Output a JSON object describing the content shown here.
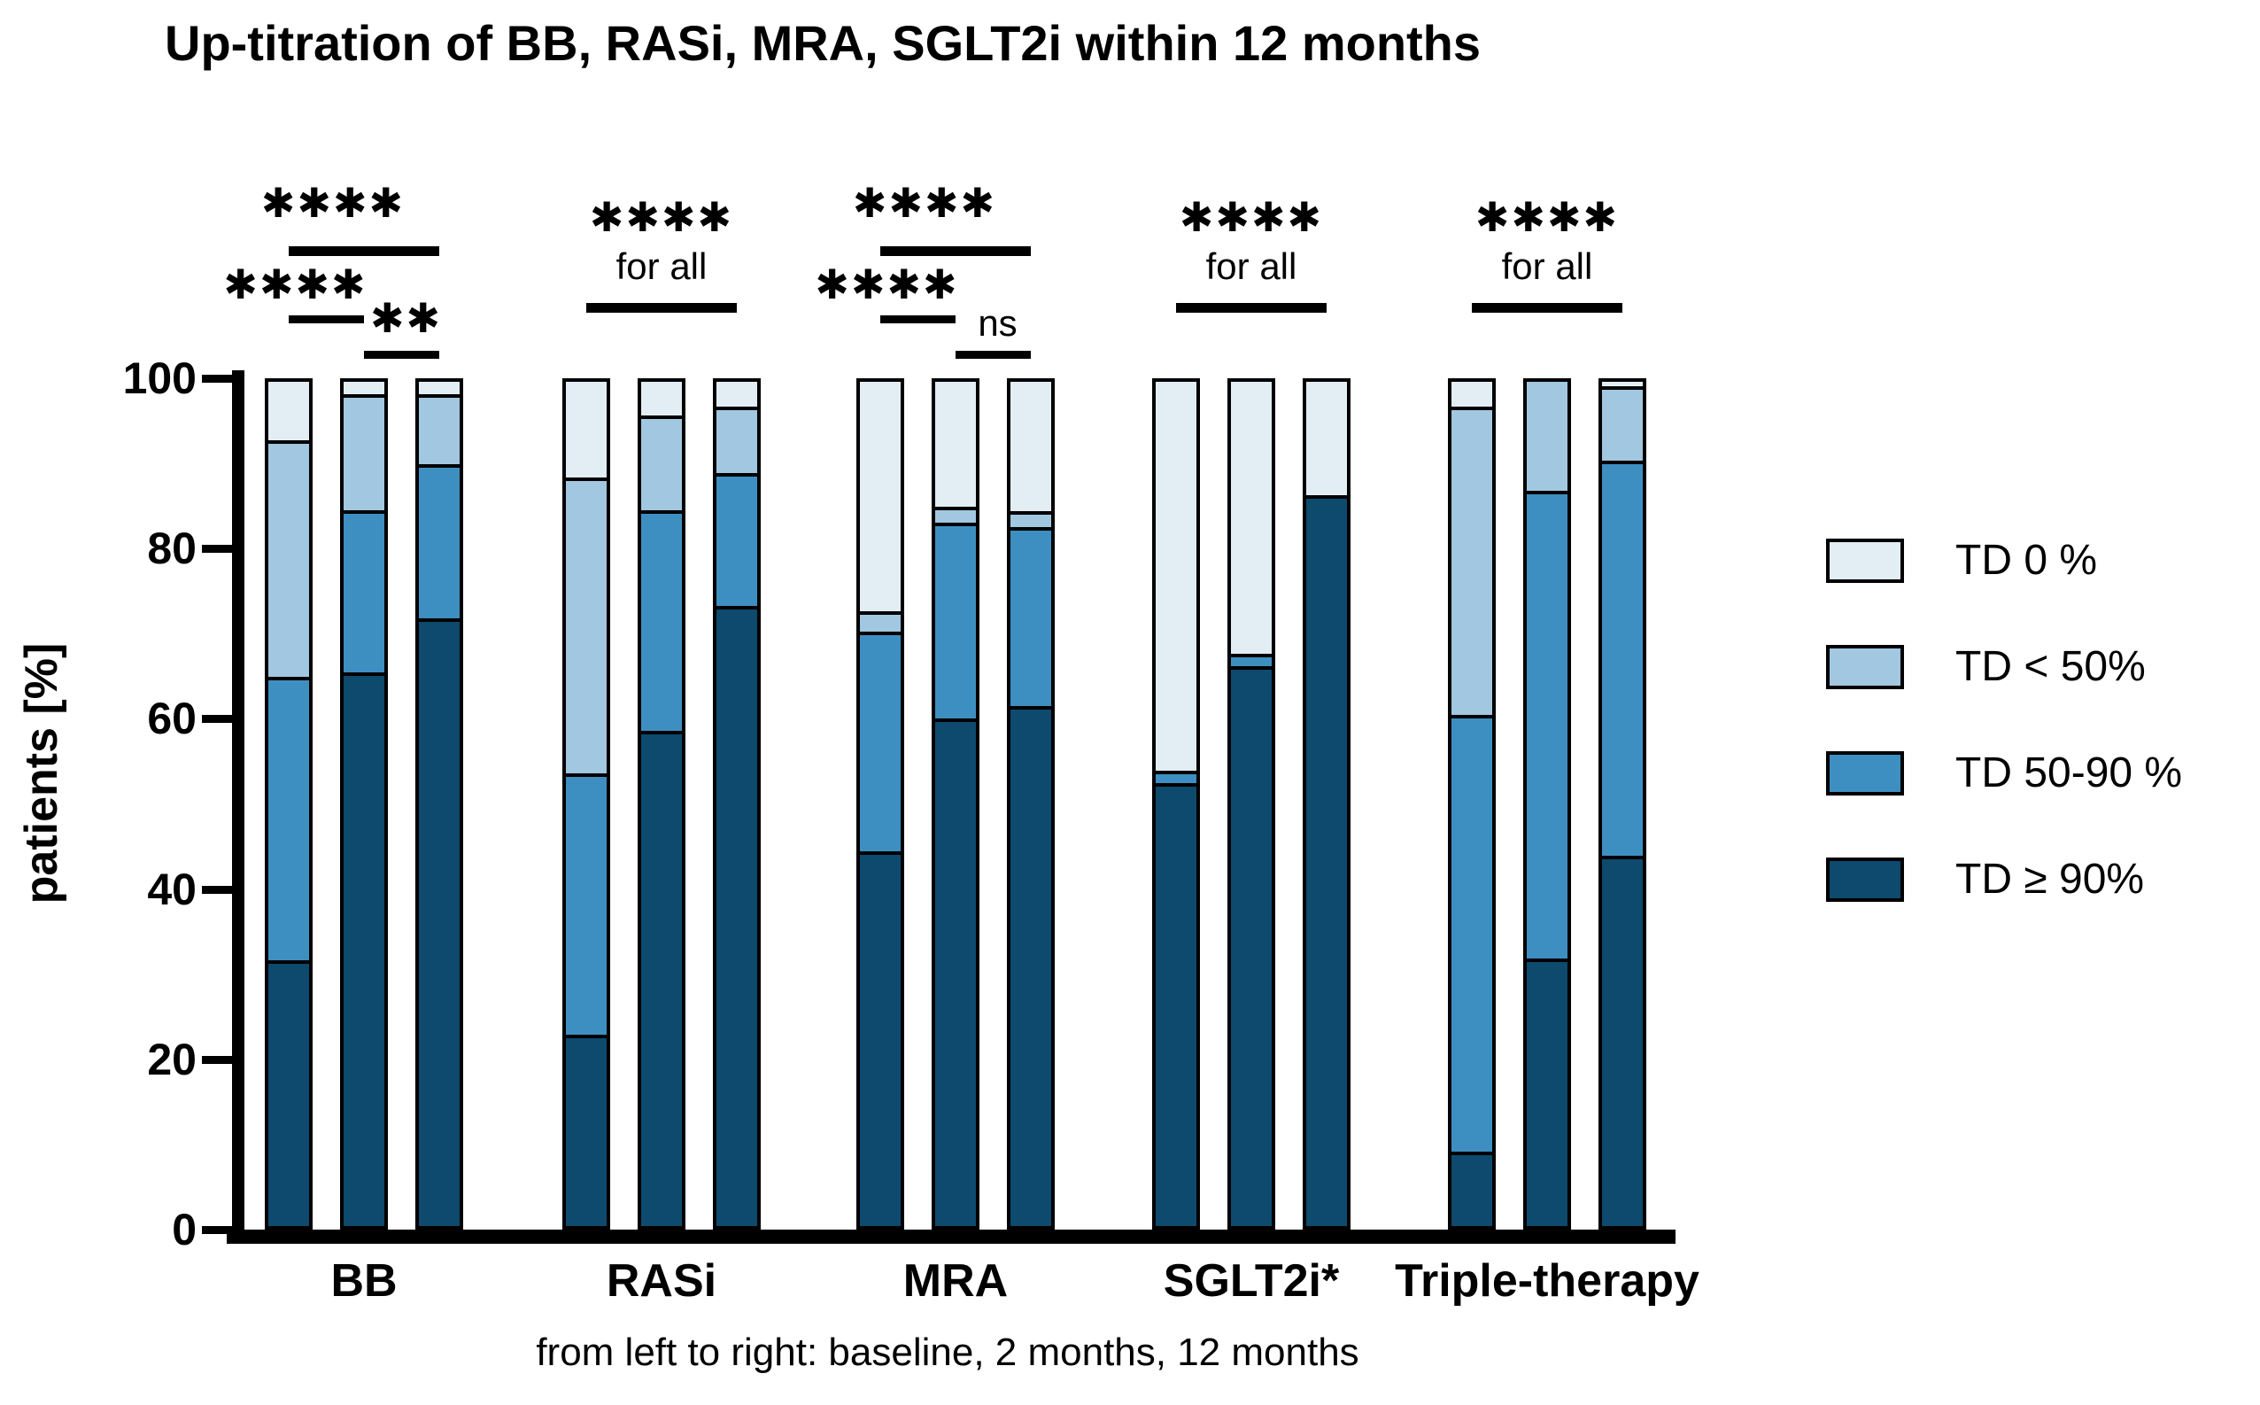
{
  "chart_data": {
    "type": "stacked-bar",
    "title": "Up-titration of BB, RASi, MRA, SGLT2i within 12 months",
    "ylabel": "patients [%]",
    "footnote": "from left to right: baseline, 2 months, 12 months",
    "ylim": [
      0,
      100
    ],
    "yticks": [
      0,
      20,
      40,
      60,
      80,
      100
    ],
    "bar_times": [
      "baseline",
      "2 months",
      "12 months"
    ],
    "segment_order_bottom_to_top": [
      "td_ge90",
      "td_50_90",
      "td_lt50",
      "td_0"
    ],
    "segment_labels": {
      "td_0": "TD 0 %",
      "td_lt50": "TD < 50%",
      "td_50_90": "TD 50-90 %",
      "td_ge90": "TD ≥  90%"
    },
    "colors": {
      "td_0": "#e2edf4",
      "td_lt50": "#a2c7e0",
      "td_50_90": "#3e8fc1",
      "td_ge90": "#0d4a6e",
      "axis": "#000000"
    },
    "legend": [
      "td_0",
      "td_lt50",
      "td_50_90",
      "td_ge90"
    ],
    "legend_position": "right",
    "groups": [
      {
        "label": "BB",
        "bars": [
          {
            "time": "baseline",
            "td_ge90": 31.5,
            "td_50_90": 33.5,
            "td_lt50": 28,
            "td_0": 7
          },
          {
            "time": "2 months",
            "td_ge90": 66,
            "td_50_90": 19,
            "td_lt50": 13.5,
            "td_0": 1.5
          },
          {
            "time": "12 months",
            "td_ge90": 72.5,
            "td_50_90": 18,
            "td_lt50": 8,
            "td_0": 1.5
          }
        ]
      },
      {
        "label": "RASi",
        "bars": [
          {
            "time": "baseline",
            "td_ge90": 22.5,
            "td_50_90": 31,
            "td_lt50": 35,
            "td_0": 11.5
          },
          {
            "time": "2 months",
            "td_ge90": 59,
            "td_50_90": 26,
            "td_lt50": 11,
            "td_0": 4
          },
          {
            "time": "12 months",
            "td_ge90": 74,
            "td_50_90": 15.5,
            "td_lt50": 7.5,
            "td_0": 3
          }
        ]
      },
      {
        "label": "MRA",
        "bars": [
          {
            "time": "baseline",
            "td_ge90": 44.5,
            "td_50_90": 26,
            "td_lt50": 2,
            "td_0": 27.5
          },
          {
            "time": "2 months",
            "td_ge90": 60.5,
            "td_50_90": 23,
            "td_lt50": 1.5,
            "td_0": 15
          },
          {
            "time": "12 months",
            "td_ge90": 62,
            "td_50_90": 21,
            "td_lt50": 1.5,
            "td_0": 15.5
          }
        ]
      },
      {
        "label": "SGLT2i*",
        "bars": [
          {
            "time": "baseline",
            "td_ge90": 52.5,
            "td_50_90": 1,
            "td_lt50": 0,
            "td_0": 46.5
          },
          {
            "time": "2 months",
            "td_ge90": 66.5,
            "td_50_90": 1,
            "td_lt50": 0,
            "td_0": 32.5
          },
          {
            "time": "12 months",
            "td_ge90": 86.5,
            "td_50_90": 0,
            "td_lt50": 0,
            "td_0": 13.5
          }
        ]
      },
      {
        "label": "Triple-therapy",
        "bars": [
          {
            "time": "baseline",
            "td_ge90": 8.5,
            "td_50_90": 52,
            "td_lt50": 36.5,
            "td_0": 3
          },
          {
            "time": "2 months",
            "td_ge90": 31.5,
            "td_50_90": 55.5,
            "td_lt50": 13,
            "td_0": 0
          },
          {
            "time": "12 months",
            "td_ge90": 44,
            "td_50_90": 47,
            "td_lt50": 8.5,
            "td_0": 0.5
          }
        ]
      }
    ],
    "annotations": [
      {
        "group_index": 0,
        "style": "brackets",
        "items": [
          {
            "label": "****",
            "from_bar": 0,
            "to_bar": 2,
            "row": 0
          },
          {
            "label": "****",
            "from_bar": 0,
            "to_bar": 1,
            "row": 1
          },
          {
            "label": "**",
            "from_bar": 1,
            "to_bar": 2,
            "row": 2
          }
        ]
      },
      {
        "group_index": 1,
        "style": "for_all",
        "stars": "****",
        "note": "for all"
      },
      {
        "group_index": 2,
        "style": "brackets",
        "items": [
          {
            "label": "****",
            "from_bar": 0,
            "to_bar": 2,
            "row": 0
          },
          {
            "label": "****",
            "from_bar": 0,
            "to_bar": 1,
            "row": 1
          },
          {
            "label": "ns",
            "from_bar": 1,
            "to_bar": 2,
            "row": 2
          }
        ]
      },
      {
        "group_index": 3,
        "style": "for_all",
        "stars": "****",
        "note": "for all"
      },
      {
        "group_index": 4,
        "style": "for_all",
        "stars": "****",
        "note": "for all"
      }
    ]
  }
}
